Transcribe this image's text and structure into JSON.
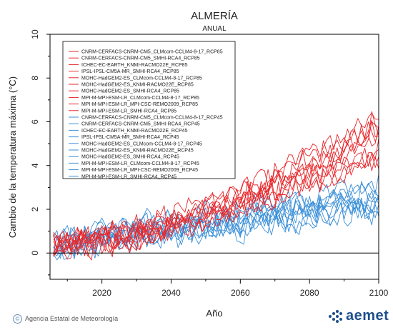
{
  "chart_data": {
    "type": "line",
    "title": "ALMERÍA",
    "subtitle": "ANUAL",
    "xlabel": "Año",
    "ylabel": "Cambio de la temperatura máxima (°C)",
    "xlim": [
      2005,
      2100
    ],
    "ylim": [
      -1.2,
      10
    ],
    "xticks": [
      2020,
      2040,
      2060,
      2080,
      2100
    ],
    "yticks": [
      0,
      2,
      4,
      6,
      8,
      10
    ],
    "zero_line": true,
    "legend_position": "top-left",
    "colors": {
      "rcp85": "#e8262a",
      "rcp45": "#3a8fd8"
    },
    "series": [
      {
        "name": "CNRM-CERFACS-CNRM-CM5_CLMcom-CCLM4-8-17_RCP85",
        "group": "rcp85",
        "start": 0.3,
        "end": 5.9,
        "accel": 1.6,
        "seed": 11
      },
      {
        "name": "CNRM-CERFACS-CNRM-CM5_SMHI-RCA4_RCP85",
        "group": "rcp85",
        "start": 0.2,
        "end": 5.3,
        "accel": 1.7,
        "seed": 12
      },
      {
        "name": "ICHEC-EC-EARTH_KNMI-RACMO22E_RCP85",
        "group": "rcp85",
        "start": 0.4,
        "end": 6.4,
        "accel": 1.6,
        "seed": 13
      },
      {
        "name": "IPSL-IPSL-CM5A-MR_SMHI-RCA4_RCP85",
        "group": "rcp85",
        "start": 0.5,
        "end": 6.1,
        "accel": 1.5,
        "seed": 14
      },
      {
        "name": "MOHC-HadGEM2-ES_CLMcom-CCLM4-8-17_RCP85",
        "group": "rcp85",
        "start": 0.3,
        "end": 5.6,
        "accel": 1.6,
        "seed": 15
      },
      {
        "name": "MOHC-HadGEM2-ES_KNMI-RACMO22E_RCP85",
        "group": "rcp85",
        "start": 0.4,
        "end": 5.8,
        "accel": 1.7,
        "seed": 16
      },
      {
        "name": "MOHC-HadGEM2-ES_SMHI-RCA4_RCP85",
        "group": "rcp85",
        "start": 0.2,
        "end": 5.0,
        "accel": 1.6,
        "seed": 17
      },
      {
        "name": "MPI-M-MPI-ESM-LR_CLMcom-CCLM4-8-17_RCP85",
        "group": "rcp85",
        "start": 0.3,
        "end": 4.6,
        "accel": 1.5,
        "seed": 18
      },
      {
        "name": "MPI-M-MPI-ESM-LR_MPI-CSC-REMO2009_RCP85",
        "group": "rcp85",
        "start": 0.4,
        "end": 4.2,
        "accel": 1.5,
        "seed": 19
      },
      {
        "name": "MPI-M-MPI-ESM-LR_SMHI-RCA4_RCP85",
        "group": "rcp85",
        "start": 0.3,
        "end": 4.4,
        "accel": 1.5,
        "seed": 20
      },
      {
        "name": "CNRM-CERFACS-CNRM-CM5_CLMcom-CCLM4-8-17_RCP45",
        "group": "rcp45",
        "start": 0.4,
        "end": 2.4,
        "accel": 1.0,
        "seed": 31
      },
      {
        "name": "CNRM-CERFACS-CNRM-CM5_SMHI-RCA4_RCP45",
        "group": "rcp45",
        "start": 0.3,
        "end": 2.1,
        "accel": 1.0,
        "seed": 32
      },
      {
        "name": "ICHEC-EC-EARTH_KNMI-RACMO22E_RCP45",
        "group": "rcp45",
        "start": 0.5,
        "end": 2.8,
        "accel": 1.0,
        "seed": 33
      },
      {
        "name": "IPSL-IPSL-CM5A-MR_SMHI-RCA4_RCP45",
        "group": "rcp45",
        "start": 0.5,
        "end": 3.1,
        "accel": 1.0,
        "seed": 34
      },
      {
        "name": "MOHC-HadGEM2-ES_CLMcom-CCLM4-8-17_RCP45",
        "group": "rcp45",
        "start": 0.4,
        "end": 2.6,
        "accel": 1.0,
        "seed": 35
      },
      {
        "name": "MOHC-HadGEM2-ES_KNMI-RACMO22E_RCP45",
        "group": "rcp45",
        "start": 0.5,
        "end": 2.9,
        "accel": 1.0,
        "seed": 36
      },
      {
        "name": "MOHC-HadGEM2-ES_SMHI-RCA4_RCP45",
        "group": "rcp45",
        "start": 0.3,
        "end": 2.3,
        "accel": 1.0,
        "seed": 37
      },
      {
        "name": "MPI-M-MPI-ESM-LR_CLMcom-CCLM4-8-17_RCP45",
        "group": "rcp45",
        "start": 0.3,
        "end": 1.9,
        "accel": 1.0,
        "seed": 38
      },
      {
        "name": "MPI-M-MPI-ESM-LR_MPI-CSC-REMO2009_RCP45",
        "group": "rcp45",
        "start": 0.4,
        "end": 2.0,
        "accel": 1.0,
        "seed": 39
      },
      {
        "name": "MPI-M-MPI-ESM-LR_SMHI-RCA4_RCP45",
        "group": "rcp45",
        "start": 0.3,
        "end": 2.2,
        "accel": 1.0,
        "seed": 40
      }
    ]
  },
  "footer": {
    "credit": "Agencia Estatal de Meteorología",
    "copyright_symbol": "©",
    "logo_text": "aemet"
  }
}
